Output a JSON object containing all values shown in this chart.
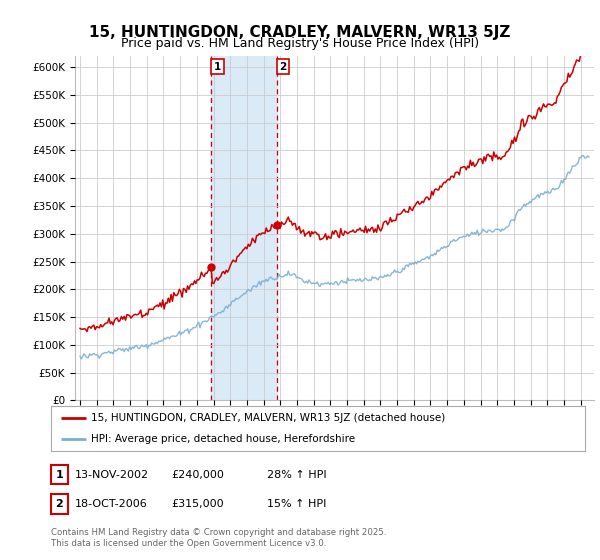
{
  "title": "15, HUNTINGDON, CRADLEY, MALVERN, WR13 5JZ",
  "subtitle": "Price paid vs. HM Land Registry's House Price Index (HPI)",
  "ylabel_ticks": [
    "£0",
    "£50K",
    "£100K",
    "£150K",
    "£200K",
    "£250K",
    "£300K",
    "£350K",
    "£400K",
    "£450K",
    "£500K",
    "£550K",
    "£600K"
  ],
  "ylim": [
    0,
    620000
  ],
  "xlim_start": 1994.7,
  "xlim_end": 2025.8,
  "sale1_year": 2002.87,
  "sale2_year": 2006.8,
  "sale1_price": 240000,
  "sale2_price": 315000,
  "legend_line1": "15, HUNTINGDON, CRADLEY, MALVERN, WR13 5JZ (detached house)",
  "legend_line2": "HPI: Average price, detached house, Herefordshire",
  "footer": "Contains HM Land Registry data © Crown copyright and database right 2025.\nThis data is licensed under the Open Government Licence v3.0.",
  "line_color": "#cc0000",
  "hpi_color": "#7aafd4",
  "shade_color": "#daeaf7",
  "background_color": "#ffffff",
  "grid_color": "#cccccc",
  "title_fontsize": 11,
  "subtitle_fontsize": 9
}
